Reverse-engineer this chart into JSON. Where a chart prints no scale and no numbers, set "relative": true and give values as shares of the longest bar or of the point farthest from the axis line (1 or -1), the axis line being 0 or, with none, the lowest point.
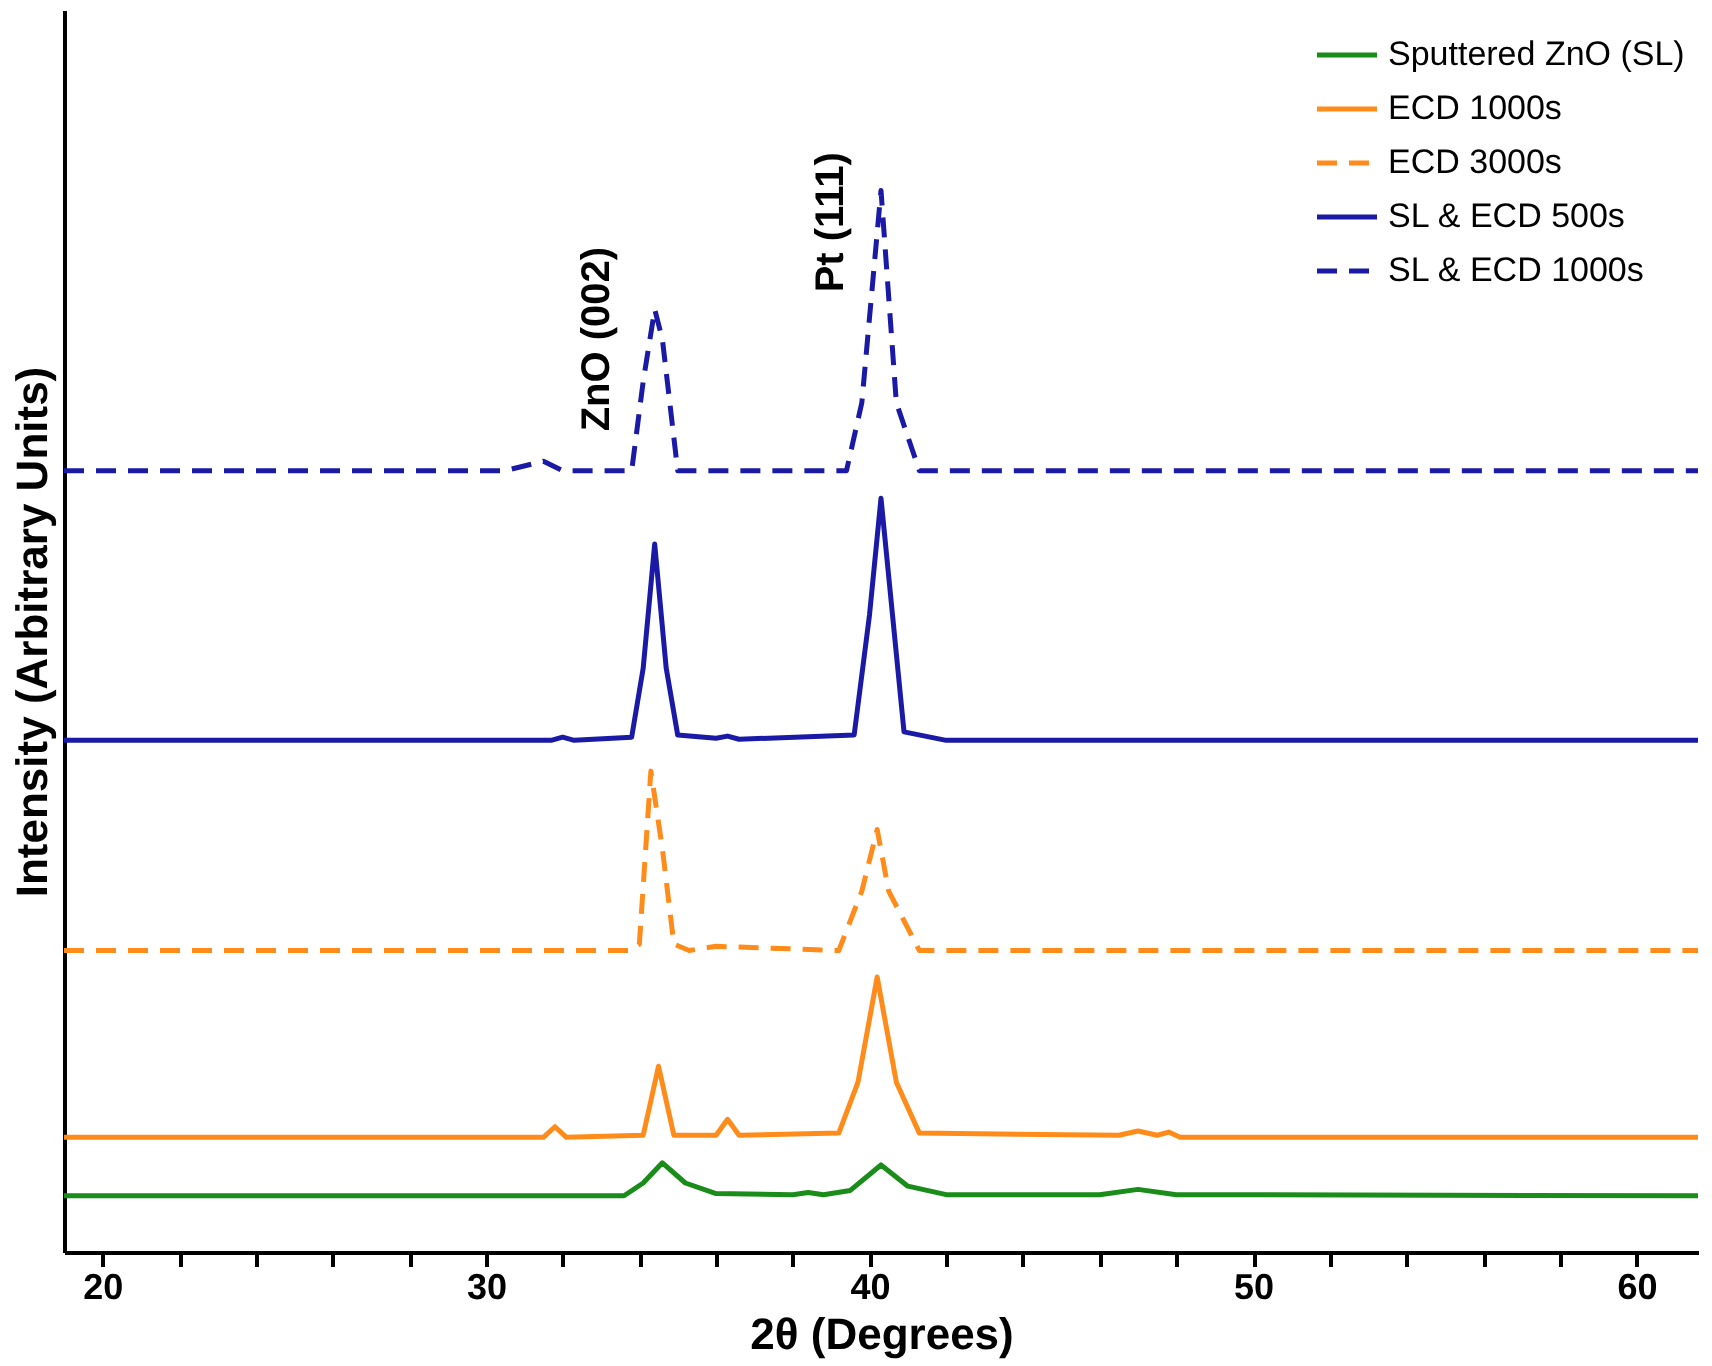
{
  "chart_data": {
    "type": "line",
    "relative": true,
    "xlabel": "2θ (Degrees)",
    "ylabel": "Intensity (Arbitrary Units)",
    "xlim": [
      19,
      61.6
    ],
    "xticks": [
      {
        "value": 20,
        "label": "20"
      },
      {
        "value": 22,
        "label": null
      },
      {
        "value": 24,
        "label": null
      },
      {
        "value": 26,
        "label": null
      },
      {
        "value": 28,
        "label": null
      },
      {
        "value": 30,
        "label": "30"
      },
      {
        "value": 32,
        "label": null
      },
      {
        "value": 34,
        "label": null
      },
      {
        "value": 36,
        "label": null
      },
      {
        "value": 38,
        "label": null
      },
      {
        "value": 40,
        "label": "40"
      },
      {
        "value": 42,
        "label": null
      },
      {
        "value": 44,
        "label": null
      },
      {
        "value": 46,
        "label": null
      },
      {
        "value": 48,
        "label": null
      },
      {
        "value": 50,
        "label": "50"
      },
      {
        "value": 52,
        "label": null
      },
      {
        "value": 54,
        "label": null
      },
      {
        "value": 56,
        "label": null
      },
      {
        "value": 58,
        "label": null
      },
      {
        "value": 60,
        "label": "60"
      }
    ],
    "tick_labels": "x",
    "grid": false,
    "legend": "top right",
    "annotations": [
      "ZnO (002)",
      "Pt (111)"
    ],
    "series": [
      {
        "name": "Sputtered ZnO (SL)",
        "color": "#1a8c1a",
        "line_style": "solid",
        "x": [
          19,
          33.6,
          34.1,
          34.6,
          35.2,
          36,
          38,
          38.4,
          38.8,
          39.5,
          40.3,
          41,
          42,
          46,
          47,
          48,
          61.6
        ],
        "values": [
          0.053,
          0.053,
          0.065,
          0.084,
          0.065,
          0.055,
          0.054,
          0.056,
          0.054,
          0.058,
          0.082,
          0.062,
          0.054,
          0.054,
          0.059,
          0.054,
          0.053
        ]
      },
      {
        "name": "ECD 1000s",
        "color": "#ff8c1a",
        "line_style": "solid",
        "x": [
          19,
          31.5,
          31.8,
          32.1,
          34.1,
          34.5,
          34.9,
          36,
          36.3,
          36.6,
          39.2,
          39.7,
          40.2,
          40.7,
          41.3,
          46.5,
          47,
          47.5,
          47.8,
          48.1,
          61.6
        ],
        "values": [
          0.108,
          0.108,
          0.118,
          0.108,
          0.11,
          0.175,
          0.11,
          0.11,
          0.125,
          0.11,
          0.112,
          0.16,
          0.259,
          0.16,
          0.112,
          0.11,
          0.114,
          0.11,
          0.113,
          0.108,
          0.108
        ]
      },
      {
        "name": "ECD 3000s",
        "color": "#ff8c1a",
        "line_style": "dashed",
        "x": [
          19,
          33.8,
          34.0,
          34.3,
          34.6,
          34.9,
          35.3,
          36,
          39.2,
          39.8,
          40.2,
          40.5,
          41.3,
          61.6
        ],
        "values": [
          0.284,
          0.284,
          0.29,
          0.453,
          0.38,
          0.29,
          0.284,
          0.288,
          0.284,
          0.34,
          0.398,
          0.34,
          0.284,
          0.284
        ]
      },
      {
        "name": "SL & ECD 500s",
        "color": "#1a1aa6",
        "line_style": "solid",
        "x": [
          19,
          31.7,
          32,
          32.3,
          33.8,
          34.1,
          34.4,
          34.7,
          35,
          36,
          36.3,
          36.6,
          39.6,
          40,
          40.3,
          40.6,
          40.9,
          42,
          61.6
        ],
        "values": [
          0.482,
          0.482,
          0.485,
          0.482,
          0.485,
          0.55,
          0.667,
          0.55,
          0.487,
          0.484,
          0.486,
          0.483,
          0.487,
          0.6,
          0.71,
          0.6,
          0.49,
          0.482,
          0.482
        ]
      },
      {
        "name": "SL & ECD 1000s",
        "color": "#1a1aa6",
        "line_style": "dashed",
        "x": [
          19,
          30.5,
          31.5,
          32,
          33.8,
          34.1,
          34.4,
          34.6,
          35,
          35.5,
          39.4,
          39.8,
          40.3,
          40.7,
          41.3,
          61.6
        ],
        "values": [
          0.736,
          0.736,
          0.745,
          0.736,
          0.736,
          0.82,
          0.888,
          0.86,
          0.736,
          0.736,
          0.736,
          0.8,
          1,
          0.8,
          0.736,
          0.736
        ]
      }
    ]
  }
}
